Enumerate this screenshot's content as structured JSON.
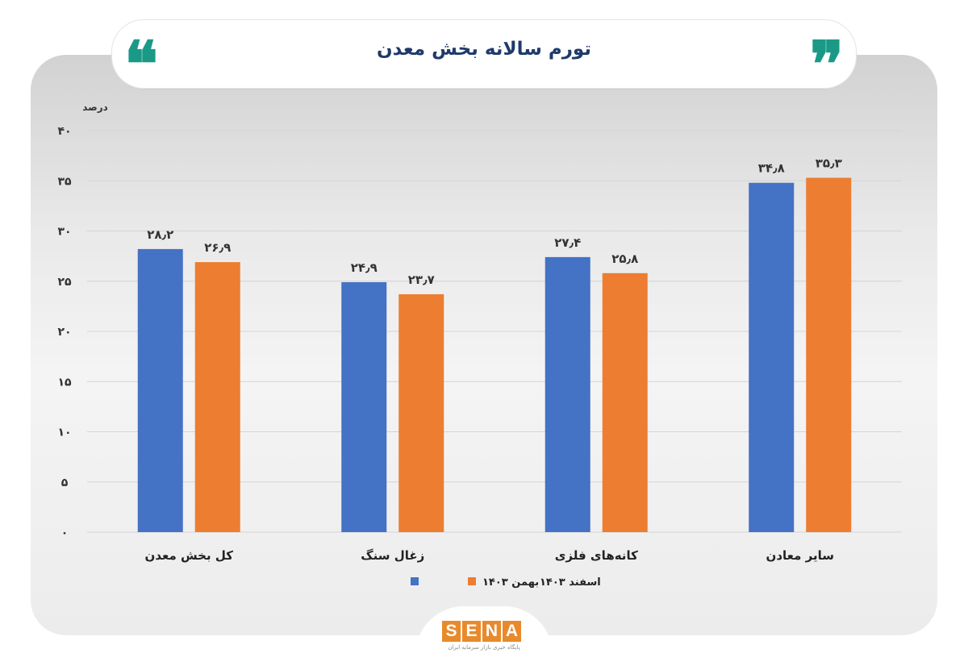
{
  "header": {
    "title": "تورم سالانه بخش معدن",
    "quote_open": "❝",
    "quote_close": "❞"
  },
  "logo": {
    "letters": [
      "S",
      "E",
      "N",
      "A"
    ],
    "subtitle": "پایگاه خبری بازار سرمایه ایران"
  },
  "colors": {
    "series_1": "#4472c4",
    "series_2": "#ed7d31",
    "accent": "#1a9a86",
    "title": "#1f3a6b"
  },
  "chart_data": {
    "type": "bar",
    "title": "تورم سالانه بخش معدن",
    "ylabel": "درصد",
    "ylim": [
      0,
      40
    ],
    "yticks": [
      0,
      5,
      10,
      15,
      20,
      25,
      30,
      35,
      40
    ],
    "ytick_labels": [
      "۰",
      "۵",
      "۱۰",
      "۱۵",
      "۲۰",
      "۲۵",
      "۳۰",
      "۳۵",
      "۴۰"
    ],
    "categories": [
      "کل بخش معدن",
      "زغال سنگ",
      "کانه‌های فلزی",
      "سایر معادن"
    ],
    "series": [
      {
        "name": "بهمن ۱۴۰۳",
        "values": [
          28.2,
          24.9,
          27.4,
          34.8
        ],
        "labels": [
          "۲۸٫۲",
          "۲۴٫۹",
          "۲۷٫۴",
          "۳۴٫۸"
        ],
        "color": "#4472c4"
      },
      {
        "name": "اسفند ۱۴۰۳",
        "values": [
          26.9,
          23.7,
          25.8,
          35.3
        ],
        "labels": [
          "۲۶٫۹",
          "۲۳٫۷",
          "۲۵٫۸",
          "۳۵٫۳"
        ],
        "color": "#ed7d31"
      }
    ],
    "grid": true,
    "legend": "bottom-center"
  }
}
